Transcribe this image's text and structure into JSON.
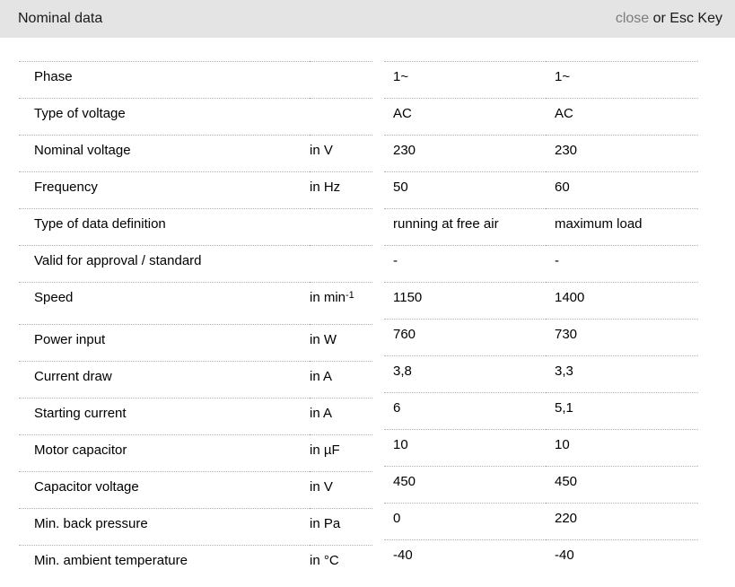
{
  "header": {
    "title": "Nominal data",
    "close_label": "close",
    "close_suffix": " or Esc Key"
  },
  "colors": {
    "header_bg": "#e4e4e4",
    "close_link": "#7d7d7d",
    "separator": "#b0b0b0",
    "text": "#000000"
  },
  "table": {
    "rows": [
      {
        "label": "Phase",
        "unit": "",
        "values": [
          "1~",
          "1~"
        ]
      },
      {
        "label": "Type of voltage",
        "unit": "",
        "values": [
          "AC",
          "AC"
        ]
      },
      {
        "label": "Nominal voltage",
        "unit": "in V",
        "values": [
          "230",
          "230"
        ]
      },
      {
        "label": "Frequency",
        "unit": "in Hz",
        "values": [
          "50",
          "60"
        ]
      },
      {
        "label": "Type of data definition",
        "unit": "",
        "values": [
          "running at free air",
          "maximum load"
        ]
      },
      {
        "label": "Valid for approval / standard",
        "unit": "",
        "values": [
          "-",
          "-"
        ]
      },
      {
        "label": "Speed",
        "unit": "in min",
        "unit_sup": "-1",
        "values": [
          "1150",
          "1400"
        ]
      },
      {
        "label": "Power input",
        "unit": "in W",
        "values": [
          "760",
          "730"
        ]
      },
      {
        "label": "Current draw",
        "unit": "in A",
        "values": [
          "3,8",
          "3,3"
        ]
      },
      {
        "label": "Starting current",
        "unit": "in A",
        "values": [
          "6",
          "5,1"
        ]
      },
      {
        "label": "Motor capacitor",
        "unit": "in µF",
        "values": [
          "10",
          "10"
        ]
      },
      {
        "label": "Capacitor voltage",
        "unit": "in V",
        "values": [
          "450",
          "450"
        ]
      },
      {
        "label": "Min. back pressure",
        "unit": "in Pa",
        "values": [
          "0",
          "220"
        ]
      },
      {
        "label": "Min. ambient temperature",
        "unit": "in °C",
        "values": [
          "-40",
          "-40"
        ]
      }
    ]
  }
}
